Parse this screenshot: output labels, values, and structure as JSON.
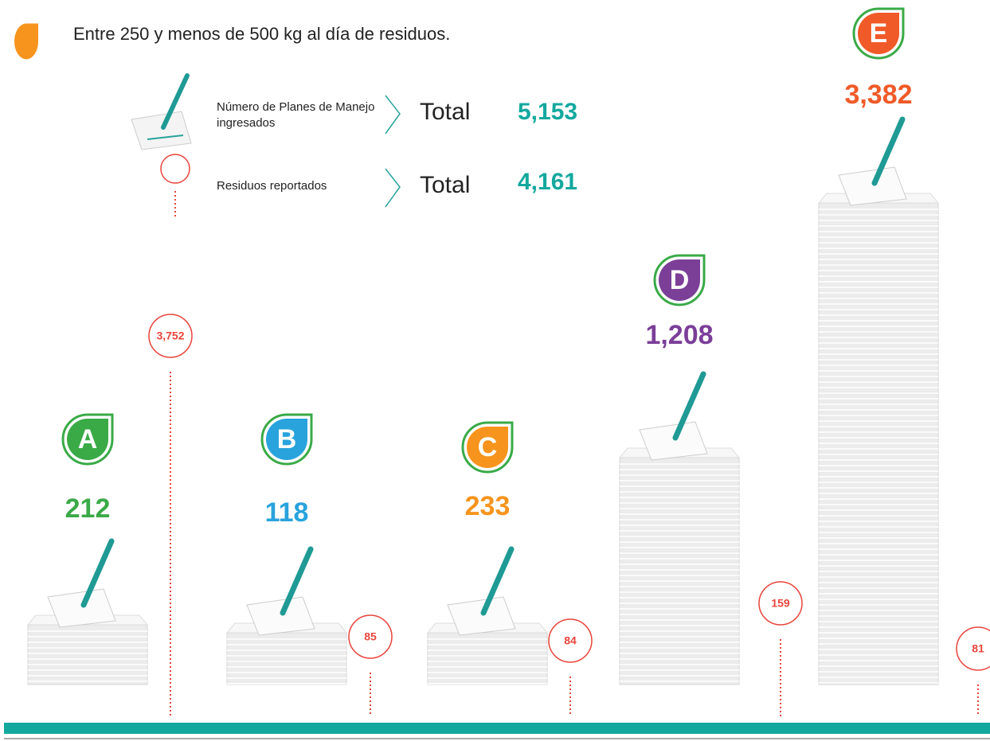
{
  "legend_title": "Entre 250 y menos de 500 kg al día de residuos.",
  "legend": [
    {
      "label": "Número de Planes de Manejo ingresados",
      "total_label": "Total",
      "total": "5,153"
    },
    {
      "label": "Residuos reportados",
      "total_label": "Total",
      "total": "4,161"
    }
  ],
  "categories": [
    {
      "letter": "A",
      "plans": "212",
      "residues": "3,752",
      "color": "#3aaa47"
    },
    {
      "letter": "B",
      "plans": "118",
      "residues": "85",
      "color": "#29a3dc"
    },
    {
      "letter": "C",
      "plans": "233",
      "residues": "84",
      "color": "#f7941d"
    },
    {
      "letter": "D",
      "plans": "1,208",
      "residues": "159",
      "color": "#7b3f98"
    },
    {
      "letter": "E",
      "plans": "3,382",
      "residues": "81",
      "color": "#f05a28"
    }
  ]
}
